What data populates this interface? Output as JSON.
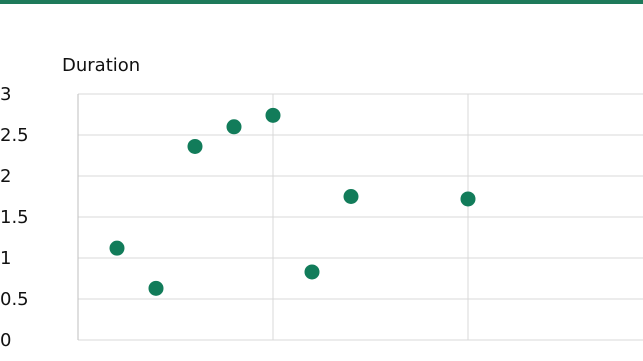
{
  "colors": {
    "accent": "#1e7a5a",
    "marker": "#127c5a",
    "grid": "#d9d9d9"
  },
  "chart_data": {
    "type": "scatter",
    "title": "",
    "ylabel": "Duration",
    "xlabel": "",
    "ylim": [
      0,
      3
    ],
    "xlim": [
      0,
      14
    ],
    "yticks": [
      "0",
      "0.5",
      "1",
      "1.5",
      "2",
      "2.5",
      "3"
    ],
    "ytick_values": [
      0,
      0.5,
      1,
      1.5,
      2,
      2.5,
      3
    ],
    "x_gridlines": [
      0,
      5,
      10
    ],
    "grid": true,
    "series": [
      {
        "points": [
          {
            "x": 1,
            "y": 1.12
          },
          {
            "x": 2,
            "y": 0.63
          },
          {
            "x": 3,
            "y": 2.36
          },
          {
            "x": 4,
            "y": 2.6
          },
          {
            "x": 5,
            "y": 2.74
          },
          {
            "x": 6,
            "y": 0.83
          },
          {
            "x": 7,
            "y": 1.75
          },
          {
            "x": 10,
            "y": 1.72
          }
        ]
      }
    ]
  }
}
